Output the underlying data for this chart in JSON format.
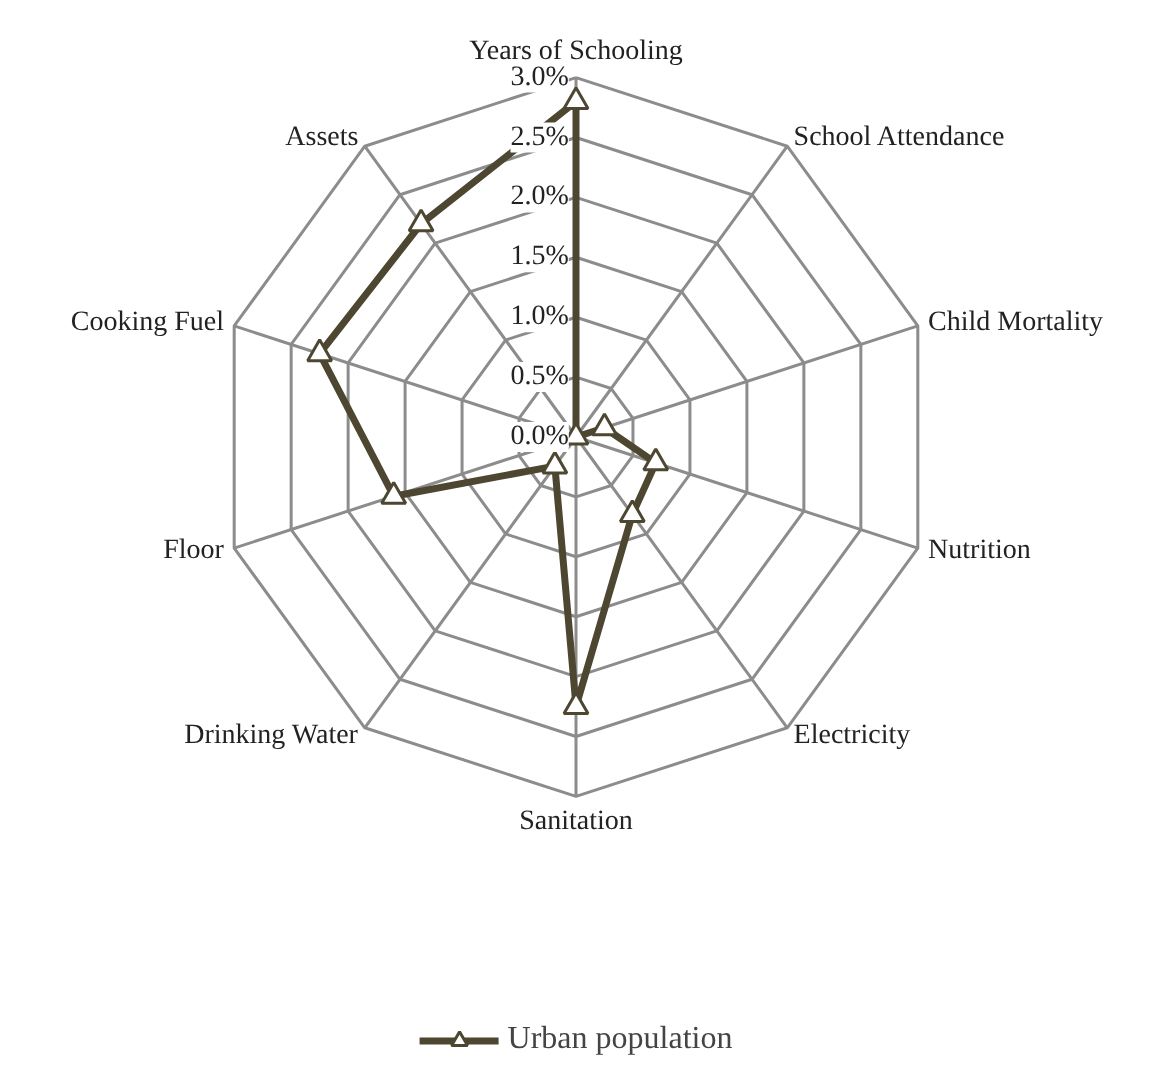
{
  "chart_data": {
    "type": "radar",
    "categories": [
      "Years of Schooling",
      "School Attendance",
      "Child Mortality",
      "Nutrition",
      "Electricity",
      "Sanitation",
      "Drinking Water",
      "Floor",
      "Cooking Fuel",
      "Assets"
    ],
    "series": [
      {
        "name": "Urban population",
        "color": "#4d4631",
        "values": [
          2.8,
          0.0,
          0.25,
          0.7,
          0.8,
          2.25,
          0.3,
          1.6,
          2.25,
          2.2
        ]
      }
    ],
    "ylim": [
      0,
      3.0
    ],
    "yticks": [
      {
        "value": 0,
        "label": "0.0%"
      },
      {
        "value": 0.5,
        "label": "0.5%"
      },
      {
        "value": 1.0,
        "label": "1.0%"
      },
      {
        "value": 1.5,
        "label": "1.5%"
      },
      {
        "value": 2.0,
        "label": "2.0%"
      },
      {
        "value": 2.5,
        "label": "2.5%"
      },
      {
        "value": 3.0,
        "label": "3.0%"
      }
    ],
    "grid": true,
    "legend": "bottom",
    "marker": "triangle",
    "line_style": "solid"
  }
}
